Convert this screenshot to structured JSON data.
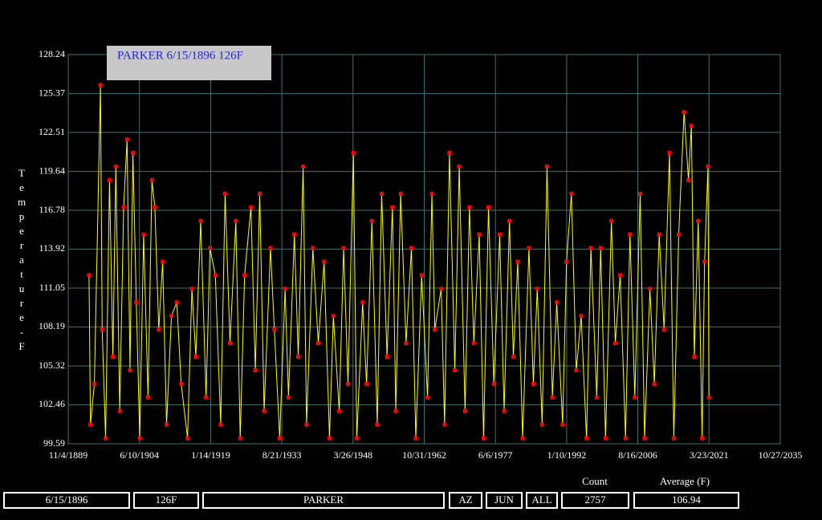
{
  "chart_data": {
    "type": "line",
    "title": "PARKER 6/15/1896 126F",
    "y_label": "Temperature-F",
    "xlim": [
      1889.84,
      2035.82
    ],
    "xticks": [
      {
        "value": 1889.84,
        "label": "11/4/1889"
      },
      {
        "value": 1904.44,
        "label": "6/10/1904"
      },
      {
        "value": 1919.04,
        "label": "1/14/1919"
      },
      {
        "value": 1933.64,
        "label": "8/21/1933"
      },
      {
        "value": 1948.23,
        "label": "3/26/1948"
      },
      {
        "value": 1962.83,
        "label": "10/31/1962"
      },
      {
        "value": 1977.43,
        "label": "6/6/1977"
      },
      {
        "value": 1992.03,
        "label": "1/10/1992"
      },
      {
        "value": 2006.62,
        "label": "8/16/2006"
      },
      {
        "value": 2021.22,
        "label": "3/23/2021"
      },
      {
        "value": 2035.82,
        "label": "10/27/2035"
      }
    ],
    "ylim": [
      99.59,
      128.24
    ],
    "yticks": [
      99.59,
      102.46,
      105.32,
      108.19,
      111.05,
      113.92,
      116.78,
      119.64,
      122.51,
      125.37,
      128.24
    ],
    "grid": true,
    "line_color": "#ffff00",
    "marker_color": "#ff0000",
    "x": [
      1894.1,
      1894.4,
      1895.2,
      1896.45,
      1896.8,
      1897.5,
      1898.3,
      1899.0,
      1899.6,
      1900.4,
      1901.2,
      1901.9,
      1902.5,
      1903.1,
      1903.8,
      1904.5,
      1905.3,
      1906.2,
      1907.0,
      1907.6,
      1908.4,
      1909.2,
      1910.0,
      1911.0,
      1912.1,
      1913.0,
      1914.3,
      1915.2,
      1916.0,
      1917.0,
      1918.1,
      1918.9,
      1920.0,
      1921.1,
      1922.0,
      1923.0,
      1924.2,
      1925.1,
      1926.0,
      1927.3,
      1928.2,
      1929.1,
      1930.0,
      1931.3,
      1932.1,
      1933.2,
      1934.3,
      1935.0,
      1936.2,
      1937.0,
      1938.0,
      1938.7,
      1940.0,
      1941.1,
      1942.3,
      1943.4,
      1944.2,
      1945.4,
      1946.3,
      1947.2,
      1948.3,
      1949.0,
      1950.2,
      1951.0,
      1952.1,
      1953.2,
      1954.1,
      1955.2,
      1956.3,
      1957.0,
      1958.0,
      1959.1,
      1960.2,
      1961.1,
      1962.3,
      1963.5,
      1964.4,
      1965.0,
      1966.3,
      1967.0,
      1968.0,
      1969.1,
      1970.0,
      1971.2,
      1972.1,
      1973.0,
      1974.1,
      1975.0,
      1976.0,
      1977.1,
      1978.3,
      1979.2,
      1980.3,
      1981.1,
      1982.0,
      1983.0,
      1984.3,
      1985.2,
      1986.0,
      1987.0,
      1988.0,
      1989.1,
      1990.0,
      1991.2,
      1992.0,
      1993.0,
      1994.0,
      1995.0,
      1996.1,
      1997.0,
      1998.2,
      1999.0,
      2000.0,
      2001.2,
      2002.0,
      2003.0,
      2004.1,
      2005.0,
      2006.0,
      2007.1,
      2008.0,
      2009.1,
      2010.0,
      2011.0,
      2012.0,
      2013.1,
      2014.0,
      2015.0,
      2016.1,
      2017.0,
      2017.6,
      2018.2,
      2019.0,
      2019.8,
      2020.3,
      2021.0,
      2021.2
    ],
    "values": [
      112,
      101,
      104,
      126,
      108,
      100,
      119,
      106,
      120,
      102,
      117,
      122,
      105,
      121,
      110,
      100,
      115,
      103,
      119,
      117,
      108,
      113,
      101,
      109,
      110,
      104,
      100,
      111,
      106,
      116,
      103,
      114,
      112,
      101,
      118,
      107,
      116,
      100,
      112,
      117,
      105,
      118,
      102,
      114,
      108,
      100,
      111,
      103,
      115,
      106,
      120,
      101,
      114,
      107,
      113,
      100,
      109,
      102,
      114,
      104,
      121,
      100,
      110,
      104,
      116,
      101,
      118,
      106,
      117,
      102,
      118,
      107,
      114,
      100,
      112,
      103,
      118,
      108,
      111,
      101,
      121,
      105,
      120,
      102,
      117,
      107,
      115,
      100,
      117,
      104,
      115,
      102,
      116,
      106,
      113,
      100,
      114,
      104,
      111,
      101,
      120,
      103,
      110,
      101,
      113,
      118,
      105,
      109,
      100,
      114,
      103,
      114,
      100,
      116,
      107,
      112,
      100,
      115,
      103,
      118,
      100,
      111,
      104,
      115,
      108,
      121,
      100,
      115,
      124,
      119,
      123,
      106,
      116,
      100,
      113,
      120,
      103
    ]
  },
  "footer": {
    "date": "6/15/1896",
    "temp": "126F",
    "station": "PARKER",
    "state": "AZ",
    "month": "JUN",
    "filter": "ALL",
    "count_label": "Count",
    "count": "2757",
    "average_label": "Average (F)",
    "average": "106.94"
  }
}
